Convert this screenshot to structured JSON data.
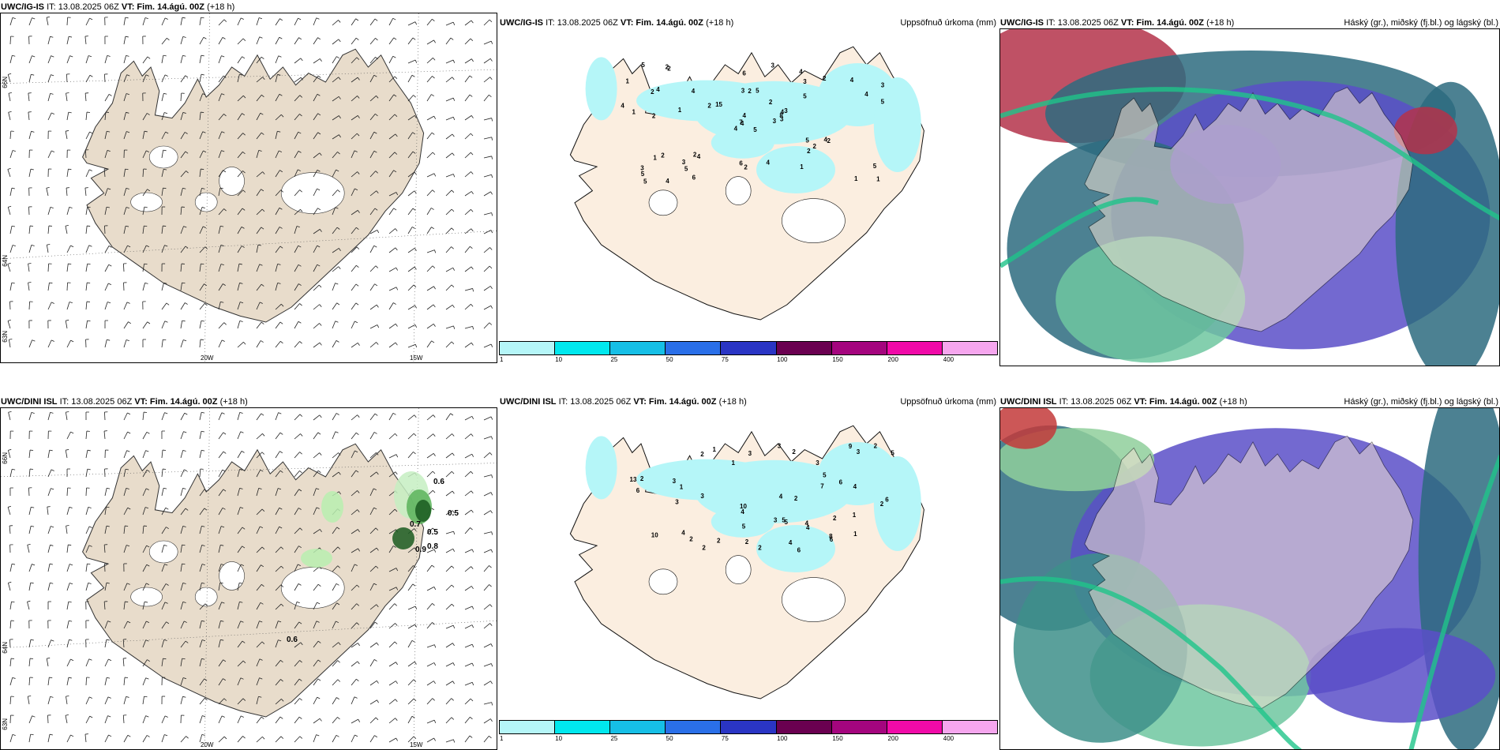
{
  "panels": [
    {
      "model": "UWC/IG-IS",
      "it": "IT: 13.08.2025 06Z",
      "vt_label": "VT:",
      "vt_value": "Fim. 14.ágú. 00Z",
      "lead": "(+18 h)",
      "right": ""
    },
    {
      "model": "UWC/IG-IS",
      "it": "IT: 13.08.2025 06Z",
      "vt_label": "VT:",
      "vt_value": "Fim. 14.ágú. 00Z",
      "lead": "(+18 h)",
      "right": "Uppsöfnuð úrkoma (mm)"
    },
    {
      "model": "UWC/IG-IS",
      "it": "IT: 13.08.2025 06Z",
      "vt_label": "VT:",
      "vt_value": "Fim. 14.ágú. 00Z",
      "lead": "(+18 h)",
      "right": "Háský (gr.), miðský (fj.bl.) og lágský (bl.)"
    },
    {
      "model": "UWC/DINI ISL",
      "it": "IT: 13.08.2025 06Z",
      "vt_label": "VT:",
      "vt_value": "Fim. 14.ágú. 00Z",
      "lead": "(+18 h)",
      "right": ""
    },
    {
      "model": "UWC/DINI ISL",
      "it": "IT: 13.08.2025 06Z",
      "vt_label": "VT:",
      "vt_value": "Fim. 14.ágú. 00Z",
      "lead": "(+18 h)",
      "right": "Uppsöfnuð úrkoma (mm)"
    },
    {
      "model": "UWC/DINI ISL",
      "it": "IT: 13.08.2025 06Z",
      "vt_label": "VT:",
      "vt_value": "Fim. 14.ágú. 00Z",
      "lead": "(+18 h)",
      "right": "Háský (gr.), miðský (fj.bl.) og lágský (bl.)"
    }
  ],
  "ticks": {
    "lon": [
      "20W",
      "15W"
    ],
    "lat": [
      "66N",
      "64N",
      "63N"
    ]
  },
  "colorbar": {
    "labels": [
      "1",
      "10",
      "25",
      "50",
      "75",
      "100",
      "150",
      "200",
      "400"
    ],
    "colors": [
      "#b5f6f8",
      "#00e8ee",
      "#16bfe6",
      "#2a6fe8",
      "#2a35c4",
      "#6a0050",
      "#a4057e",
      "#f00aa8",
      "#f6a6ee"
    ]
  },
  "precip_labels": {
    "top": [
      "5",
      "2",
      "4",
      "3",
      "4",
      "4",
      "4",
      "5",
      "3",
      "3",
      "2",
      "1",
      "2",
      "3",
      "4",
      "5",
      "4",
      "3",
      "2",
      "2",
      "15",
      "5",
      "5",
      "2",
      "3",
      "2",
      "4",
      "6",
      "1",
      "5",
      "5",
      "7",
      "6",
      "4",
      "4",
      "2",
      "2",
      "1",
      "5",
      "4",
      "3",
      "2",
      "1",
      "2",
      "6",
      "4",
      "8",
      "5",
      "2",
      "3",
      "1",
      "4",
      "1",
      "2",
      "1",
      "3",
      "2",
      "5",
      "4",
      "4"
    ],
    "bottom": [
      "6",
      "2",
      "4",
      "3",
      "6",
      "4",
      "2",
      "3",
      "4",
      "2",
      "10",
      "13",
      "10",
      "5",
      "7",
      "9",
      "6",
      "3",
      "2",
      "4",
      "8",
      "5",
      "2",
      "6",
      "2",
      "5",
      "3",
      "1",
      "2",
      "1",
      "4",
      "2",
      "3",
      "2",
      "1",
      "2",
      "3",
      "2",
      "6",
      "4",
      "3",
      "4",
      "5",
      "1",
      "2",
      "1",
      "3",
      "5"
    ]
  },
  "wind_field_labels": [
    "0.6",
    "0.5",
    "0.7",
    "0.5",
    "0.8",
    "0.9",
    "0.6"
  ]
}
